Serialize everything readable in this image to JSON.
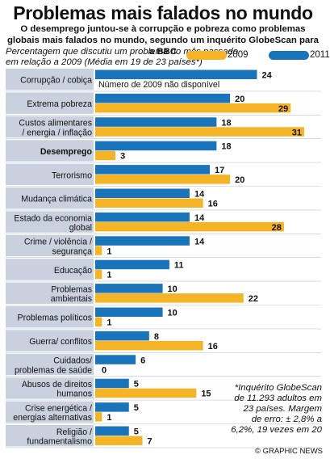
{
  "title": "Problemas mais falados no mundo",
  "subtitle": "O desemprego juntou-se à corrupção e pobreza como problemas globais mais falados no mundo, segundo um inquérito GlobeScan para a BBC",
  "caption": "Percentagem que discutiu um problema no mês passado em relação a 2009 (Média em 19 de 23 países*)",
  "legend": {
    "y2009": "2009",
    "y2011": "2011"
  },
  "colors": {
    "y2009": "#f5b326",
    "y2011": "#1a74b9",
    "label_bg": "#c9d1df"
  },
  "no_data_note": "Número de 2009 não disponível",
  "footnote": "*Inquérito GlobeScan de 11.293 adultos em 23 países. Margem de erro: ± 2,8% a 6,2%, 19 vezes em 20",
  "credit": "© GRAPHIC NEWS",
  "chart_data": {
    "type": "bar",
    "orientation": "horizontal",
    "categories": [
      "Corrupção / cobiça",
      "Extrema pobreza",
      "Custos alimentares / energia / inflação",
      "Desemprego",
      "Terrorismo",
      "Mudança climática",
      "Estado da economia global",
      "Crime / violência / segurança",
      "Educação",
      "Problemas ambientais",
      "Problemas políticos",
      "Guerra / conflitos",
      "Cuidados/ problemas de saúde",
      "Abusos de direitos humanos",
      "Crise energética / energias alternativas",
      "Religião / fundamentalismo"
    ],
    "category_lines": [
      [
        "Corrupção / cobiça"
      ],
      [
        "Extrema pobreza"
      ],
      [
        "Custos alimentares",
        "/ energia / inflação"
      ],
      [
        "Desemprego"
      ],
      [
        "Terrorismo"
      ],
      [
        "Mudança climática"
      ],
      [
        "Estado da economia",
        "global"
      ],
      [
        "Crime / violência /",
        "segurança"
      ],
      [
        "Educação"
      ],
      [
        "Problemas",
        "ambientais"
      ],
      [
        "Problemas políticos"
      ],
      [
        "Guerra/ conflitos"
      ],
      [
        "Cuidados/",
        "problemas de saúde"
      ],
      [
        "Abusos de direitos",
        "humanos"
      ],
      [
        "Crise energética /",
        "energias alternativas"
      ],
      [
        "Religião /",
        "fundamentalismo"
      ]
    ],
    "series": [
      {
        "name": "2011",
        "values": [
          24,
          20,
          18,
          18,
          17,
          14,
          14,
          14,
          11,
          10,
          10,
          8,
          6,
          5,
          5,
          5
        ]
      },
      {
        "name": "2009",
        "values": [
          null,
          29,
          31,
          3,
          20,
          16,
          28,
          1,
          1,
          22,
          1,
          16,
          0,
          15,
          1,
          7
        ]
      }
    ],
    "xlim": [
      0,
      31
    ]
  }
}
